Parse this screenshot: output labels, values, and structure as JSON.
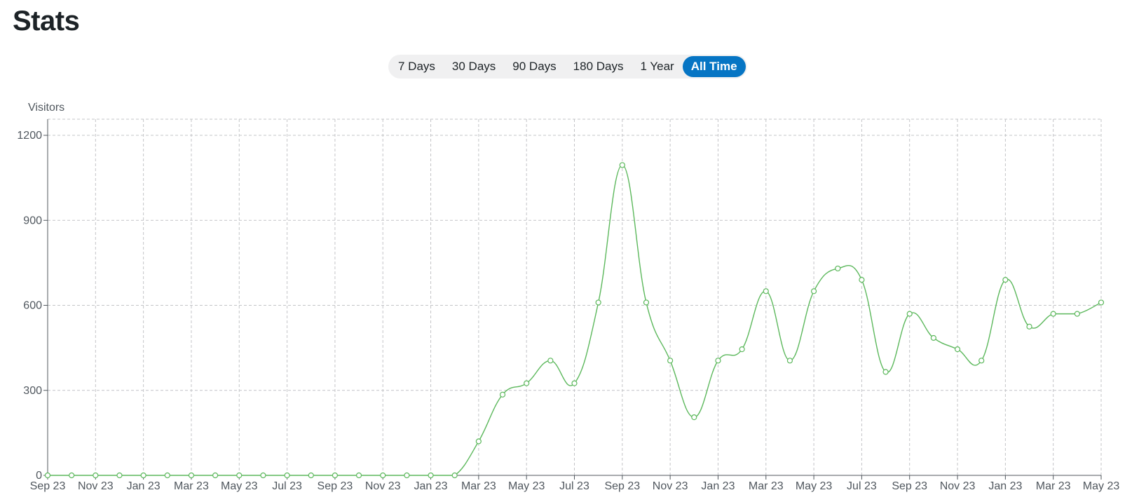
{
  "page": {
    "title": "Stats"
  },
  "range_tabs": {
    "items": [
      "7 Days",
      "30 Days",
      "90 Days",
      "180 Days",
      "1 Year",
      "All Time"
    ],
    "active_index": 5
  },
  "colors": {
    "accent": "#0675c4",
    "series": "#5cb85c"
  },
  "chart_data": {
    "type": "line",
    "title": "",
    "xlabel": "",
    "ylabel": "Visitors",
    "ylim": [
      0,
      1200
    ],
    "yticks": [
      0,
      300,
      600,
      900,
      1200
    ],
    "grid": true,
    "x_tick_labels": [
      "Sep 23",
      "Nov 23",
      "Jan 23",
      "Mar 23",
      "May 23",
      "Jul 23",
      "Sep 23",
      "Nov 23",
      "Jan 23",
      "Mar 23",
      "May 23",
      "Jul 23",
      "Sep 23",
      "Nov 23",
      "Jan 23",
      "Mar 23",
      "May 23",
      "Jul 23",
      "Sep 23",
      "Nov 23",
      "Jan 23",
      "Mar 23",
      "May 23"
    ],
    "series": [
      {
        "values": [
          0,
          0,
          0,
          0,
          0,
          0,
          0,
          0,
          0,
          0,
          0,
          0,
          0,
          0,
          0,
          0,
          0,
          0,
          120,
          285,
          325,
          405,
          325,
          610,
          1095,
          610,
          405,
          205,
          405,
          445,
          650,
          405,
          650,
          730,
          690,
          365,
          570,
          485,
          445,
          405,
          690,
          525,
          570,
          570,
          610
        ]
      }
    ]
  }
}
